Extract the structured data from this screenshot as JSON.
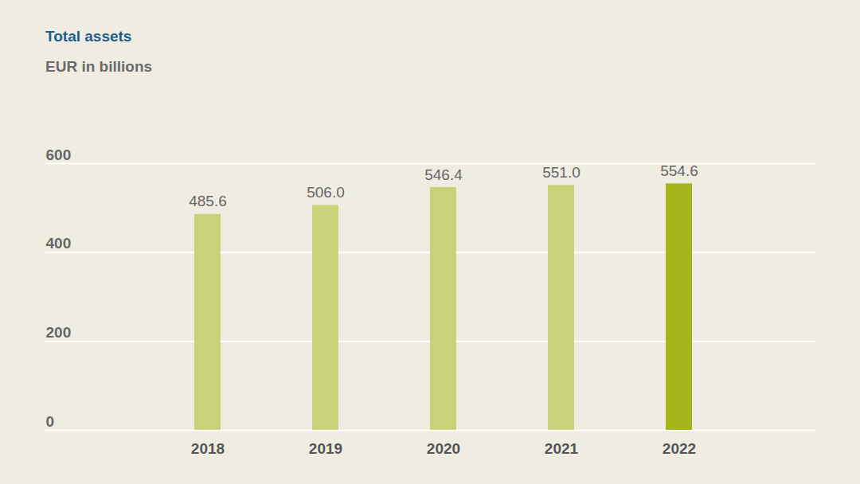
{
  "chart_data": {
    "type": "bar",
    "title": "Total assets",
    "subtitle": "EUR in billions",
    "categories": [
      "2018",
      "2019",
      "2020",
      "2021",
      "2022"
    ],
    "values": [
      485.6,
      506.0,
      546.4,
      551.0,
      554.6
    ],
    "value_labels": [
      "485.6",
      "506.0",
      "546.4",
      "551.0",
      "554.6"
    ],
    "colors": [
      "#c8d279",
      "#c8d279",
      "#c8d279",
      "#c8d279",
      "#a6b51c"
    ],
    "ylim": [
      0,
      600
    ],
    "yticks": [
      0,
      200,
      400,
      600
    ],
    "grid": true,
    "data_labels": true
  }
}
